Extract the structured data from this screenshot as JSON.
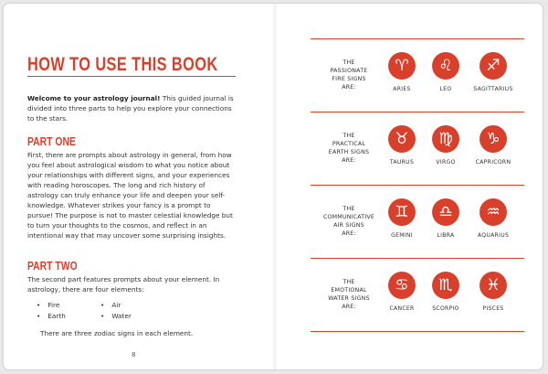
{
  "left_page": {
    "title": "HOW TO USE THIS BOOK",
    "intro": {
      "lead": "Welcome to your astrology journal!",
      "text": "This guided journal is divided into three parts to help you explore your connections to the stars."
    },
    "part_one": {
      "heading": "PART ONE",
      "text": "First, there are prompts about astrology in general, from how you feel about astrological wisdom to what you notice about your relationships with different signs, and your experiences with reading horoscopes. The long and rich history of astrology can truly enhance your life and deepen your self-knowledge. Whatever strikes your fancy is a prompt to pursue! The purpose is not to master celestial knowledge but to turn your thoughts to the cosmos, and reflect in an intentional way that may uncover some surprising insights."
    },
    "part_two": {
      "heading": "PART TWO",
      "text": "The second part features prompts about your element. In astrol­ogy, there are four elements:",
      "elements": [
        "Fire",
        "Air",
        "Earth",
        "Water"
      ],
      "note": "There are three zodiac signs in each element."
    },
    "page_number": "8"
  },
  "right_page": {
    "groups": [
      {
        "label": "THE\nPASSIONATE\nFIRE SIGNS\nARE:",
        "signs": [
          {
            "symbol": "♈︎",
            "name": "ARIES"
          },
          {
            "symbol": "♌︎",
            "name": "LEO"
          },
          {
            "symbol": "♐︎",
            "name": "SAGITTARIUS"
          }
        ]
      },
      {
        "label": "THE\nPRACTICAL\nEARTH SIGNS\nARE:",
        "signs": [
          {
            "symbol": "♉︎",
            "name": "TAURUS"
          },
          {
            "symbol": "♍︎",
            "name": "VIRGO"
          },
          {
            "symbol": "♑︎",
            "name": "CAPRICORN"
          }
        ]
      },
      {
        "label": "THE\nCOMMUNICATIVE\nAIR SIGNS\nARE:",
        "signs": [
          {
            "symbol": "♊︎",
            "name": "GEMINI"
          },
          {
            "symbol": "♎︎",
            "name": "LIBRA"
          },
          {
            "symbol": "♒︎",
            "name": "AQUARIUS"
          }
        ]
      },
      {
        "label": "THE\nEMOTIONAL\nWATER SIGNS\nARE:",
        "signs": [
          {
            "symbol": "♋︎",
            "name": "CANCER"
          },
          {
            "symbol": "♏︎",
            "name": "SCORPIO"
          },
          {
            "symbol": "♓︎",
            "name": "PISCES"
          }
        ]
      }
    ]
  }
}
